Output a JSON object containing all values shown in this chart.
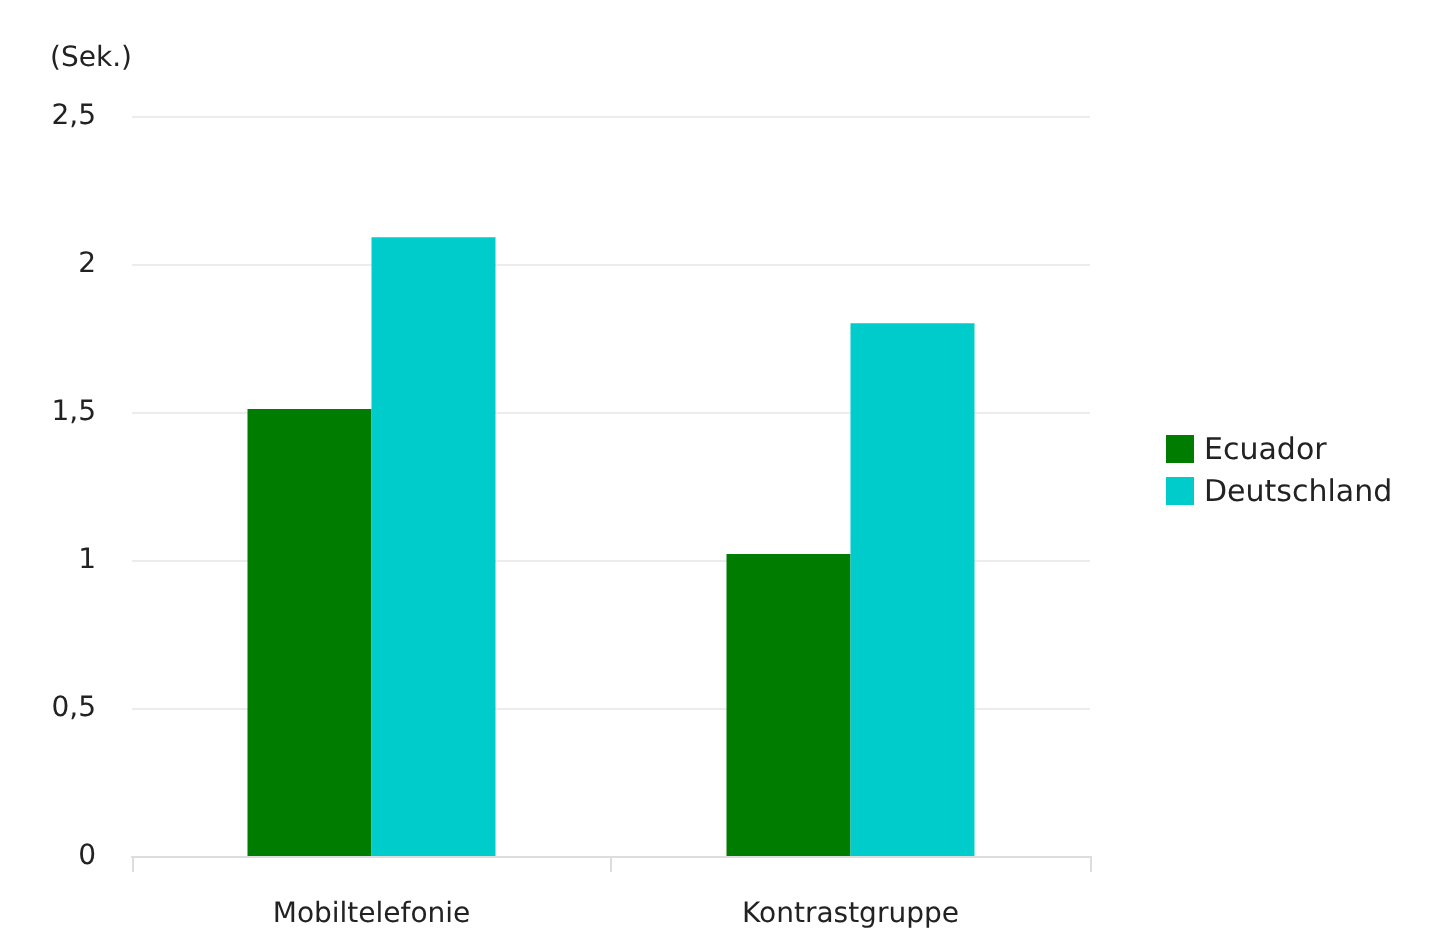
{
  "chart_data": {
    "type": "bar",
    "ylabel": "(Sek.)",
    "categories": [
      "Mobiltelefonie",
      "Kontrastgruppe"
    ],
    "series": [
      {
        "name": "Ecuador",
        "color": "#007d00",
        "values": [
          1.51,
          1.02
        ]
      },
      {
        "name": "Deutschland",
        "color": "#00cccc",
        "values": [
          2.09,
          1.8
        ]
      }
    ],
    "ylim": [
      0,
      2.5
    ],
    "yticks": [
      0,
      {
        "value": 0.5,
        "label": "0,5"
      },
      1,
      {
        "value": 1.5,
        "label": "1,5"
      },
      2,
      {
        "value": 2.5,
        "label": "2,5"
      }
    ],
    "grid": "y",
    "legend": "right"
  }
}
